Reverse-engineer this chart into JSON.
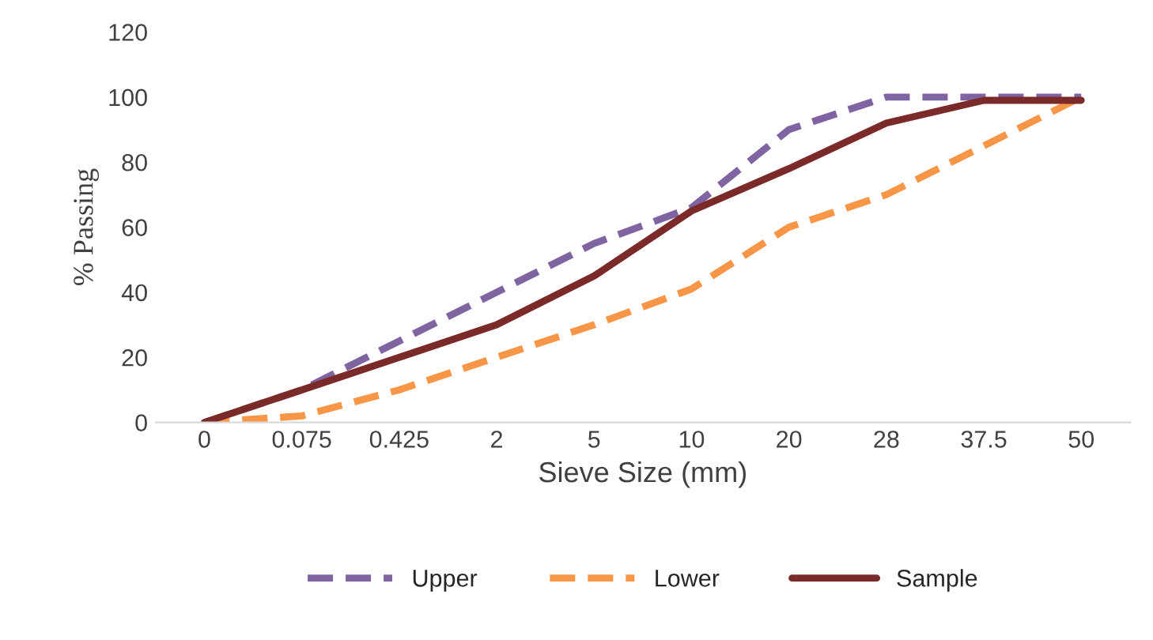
{
  "chart_data": {
    "type": "line",
    "xlabel": "Sieve Size (mm)",
    "ylabel": "% Passing",
    "categories": [
      "0",
      "0.075",
      "0.425",
      "2",
      "5",
      "10",
      "20",
      "28",
      "37.5",
      "50"
    ],
    "ylim": [
      0,
      120
    ],
    "yticks": [
      0,
      20,
      40,
      60,
      80,
      100,
      120
    ],
    "grid": false,
    "legend": "bottom",
    "marker": "none",
    "series": [
      {
        "name": "Upper",
        "color": "#8064a2",
        "line_style": "dashed",
        "values": [
          0,
          10,
          25,
          40,
          55,
          66,
          90,
          100,
          100,
          100
        ]
      },
      {
        "name": "Lower",
        "color": "#f79646",
        "line_style": "dashed",
        "values": [
          0,
          2,
          10,
          20,
          30,
          41,
          60,
          70,
          85,
          100
        ]
      },
      {
        "name": "Sample",
        "color": "#7b2a2a",
        "line_style": "solid",
        "values": [
          0,
          10,
          20,
          30,
          45,
          65,
          78,
          92,
          99,
          99
        ]
      }
    ]
  }
}
